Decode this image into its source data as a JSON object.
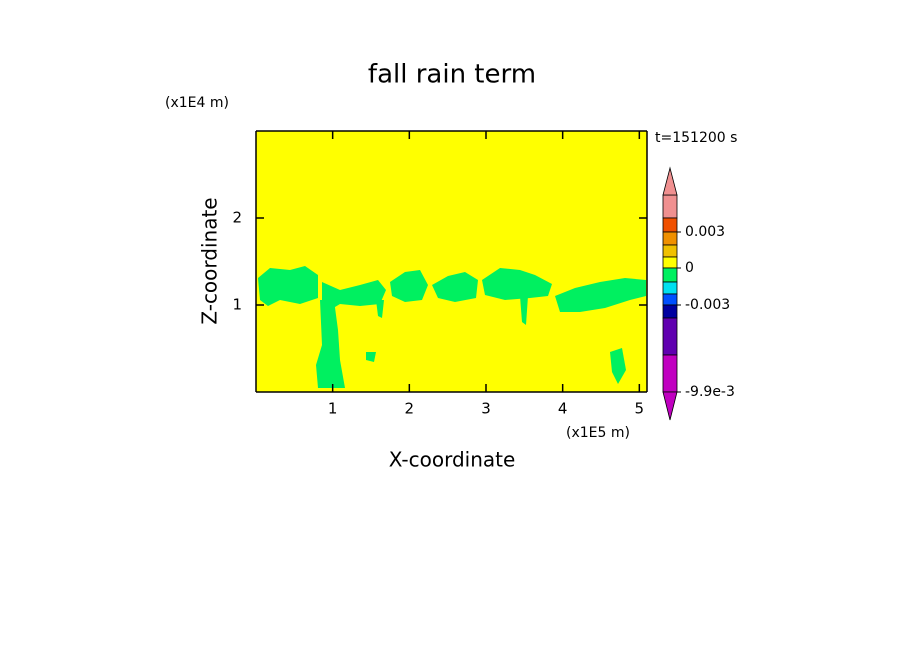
{
  "chart_data": {
    "type": "contour",
    "title": "fall rain term",
    "x_label": "X-coordinate",
    "y_label": "Z-coordinate",
    "x_unit": "(x1E5 m)",
    "y_unit": "(x1E4 m)",
    "annotation": "t=151200 s",
    "xlim": [
      0,
      5.1
    ],
    "xticks": [
      1,
      2,
      3,
      4,
      5
    ],
    "ylim": [
      0,
      3
    ],
    "yticks": [
      1,
      2
    ],
    "background_color": "#ffff00",
    "contour_color": "#00f060",
    "colorbar": {
      "colors": [
        "#f09090",
        "#f05000",
        "#f09000",
        "#f0c000",
        "#ffff00",
        "#00f060",
        "#00e0f0",
        "#0050ff",
        "#0000a0",
        "#6000b0",
        "#c000c0"
      ],
      "ticks": [
        0.003,
        0,
        -0.003,
        {
          "value": -0.0099,
          "label": "-9.9e-3"
        }
      ]
    }
  }
}
